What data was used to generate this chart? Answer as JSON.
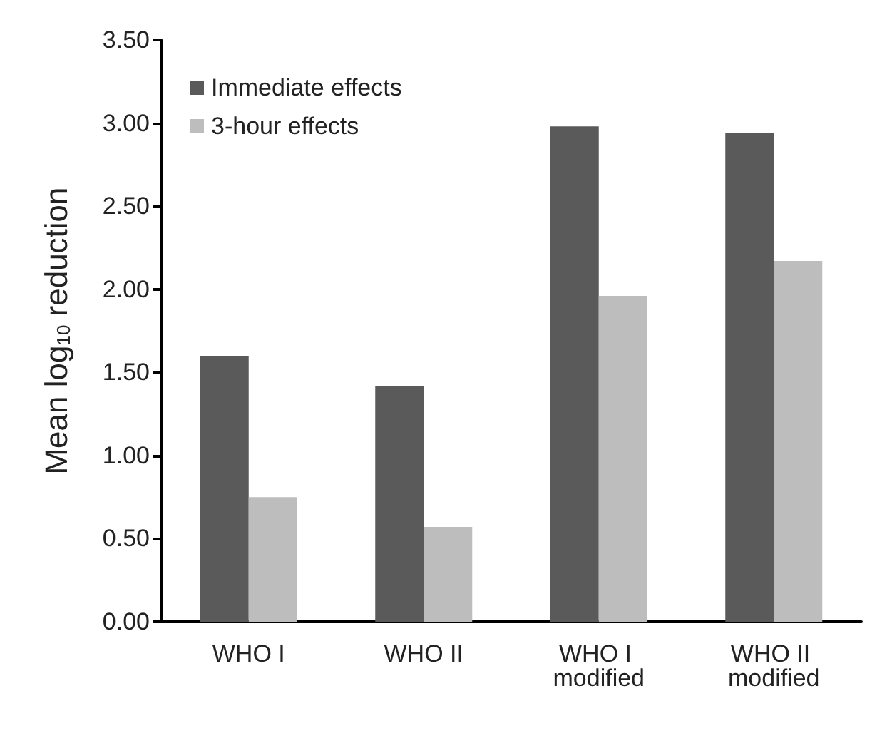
{
  "chart_data": {
    "type": "bar",
    "ylabel": "Mean log$_{10}$ reduction",
    "categories": [
      "WHO I",
      "WHO II",
      "WHO I modified",
      "WHO II modified"
    ],
    "series": [
      {
        "name": "Immediate effects",
        "color": "#5a5a5a",
        "values": [
          1.6,
          1.42,
          2.98,
          2.94
        ]
      },
      {
        "name": "3-hour effects",
        "color": "#bdbdbd",
        "values": [
          0.75,
          0.57,
          1.96,
          2.17
        ]
      }
    ],
    "ylim": [
      0,
      3.5
    ],
    "yticks": [
      {
        "value": 0,
        "label": "0.00"
      },
      {
        "value": 0.5,
        "label": "0.50"
      },
      {
        "value": 1,
        "label": "1.00"
      },
      {
        "value": 1.5,
        "label": "1.50"
      },
      {
        "value": 2,
        "label": "2.00"
      },
      {
        "value": 2.5,
        "label": "2.50"
      },
      {
        "value": 3,
        "label": "3.00"
      },
      {
        "value": 3.5,
        "label": "3.50"
      }
    ],
    "grid": false,
    "legend": "top left"
  }
}
